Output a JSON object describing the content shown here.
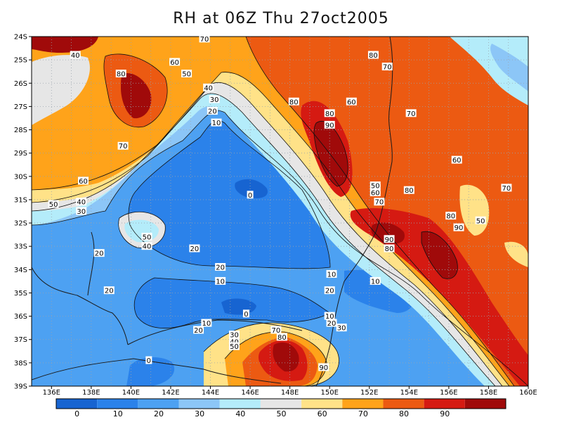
{
  "title": "RH at 06Z Thu 27oct2005",
  "map": {
    "lon_range": [
      135,
      160
    ],
    "lat_range": [
      -39,
      -24
    ],
    "lat_labels": [
      "24S",
      "25S",
      "26S",
      "27S",
      "28S",
      "29S",
      "30S",
      "31S",
      "32S",
      "33S",
      "34S",
      "35S",
      "36S",
      "37S",
      "38S",
      "39S"
    ],
    "lon_labels": [
      "136E",
      "138E",
      "140E",
      "142E",
      "144E",
      "146E",
      "148E",
      "150E",
      "152E",
      "154E",
      "156E",
      "158E",
      "160E"
    ],
    "contour_labels": [
      {
        "text": "70",
        "lon": 143.7,
        "lat": -24.1
      },
      {
        "text": "40",
        "lon": 137.2,
        "lat": -24.8
      },
      {
        "text": "80",
        "lon": 139.5,
        "lat": -25.6
      },
      {
        "text": "60",
        "lon": 142.2,
        "lat": -25.1
      },
      {
        "text": "50",
        "lon": 142.8,
        "lat": -25.6
      },
      {
        "text": "40",
        "lon": 143.9,
        "lat": -26.2
      },
      {
        "text": "30",
        "lon": 144.2,
        "lat": -26.7
      },
      {
        "text": "20",
        "lon": 144.1,
        "lat": -27.2
      },
      {
        "text": "10",
        "lon": 144.3,
        "lat": -27.7
      },
      {
        "text": "70",
        "lon": 139.6,
        "lat": -28.7
      },
      {
        "text": "60",
        "lon": 137.6,
        "lat": -30.2
      },
      {
        "text": "40",
        "lon": 137.5,
        "lat": -31.1
      },
      {
        "text": "30",
        "lon": 137.5,
        "lat": -31.5
      },
      {
        "text": "50",
        "lon": 136.1,
        "lat": -31.2
      },
      {
        "text": "50",
        "lon": 140.8,
        "lat": -32.6
      },
      {
        "text": "40",
        "lon": 140.8,
        "lat": -33.0
      },
      {
        "text": "20",
        "lon": 138.4,
        "lat": -33.3
      },
      {
        "text": "20",
        "lon": 143.2,
        "lat": -33.1
      },
      {
        "text": "0",
        "lon": 146.0,
        "lat": -30.8
      },
      {
        "text": "80",
        "lon": 152.2,
        "lat": -24.8
      },
      {
        "text": "70",
        "lon": 152.9,
        "lat": -25.3
      },
      {
        "text": "80",
        "lon": 148.2,
        "lat": -26.8
      },
      {
        "text": "80",
        "lon": 150.0,
        "lat": -27.3
      },
      {
        "text": "60",
        "lon": 151.1,
        "lat": -26.8
      },
      {
        "text": "90",
        "lon": 150.0,
        "lat": -27.8
      },
      {
        "text": "70",
        "lon": 154.1,
        "lat": -27.3
      },
      {
        "text": "60",
        "lon": 156.4,
        "lat": -29.3
      },
      {
        "text": "50",
        "lon": 152.3,
        "lat": -30.4
      },
      {
        "text": "60",
        "lon": 152.3,
        "lat": -30.7
      },
      {
        "text": "80",
        "lon": 154.0,
        "lat": -30.6
      },
      {
        "text": "70",
        "lon": 158.9,
        "lat": -30.5
      },
      {
        "text": "70",
        "lon": 152.5,
        "lat": -31.1
      },
      {
        "text": "80",
        "lon": 156.1,
        "lat": -31.7
      },
      {
        "text": "90",
        "lon": 156.5,
        "lat": -32.2
      },
      {
        "text": "50",
        "lon": 157.6,
        "lat": -31.9
      },
      {
        "text": "90",
        "lon": 153.0,
        "lat": -32.7
      },
      {
        "text": "80",
        "lon": 153.0,
        "lat": -33.1
      },
      {
        "text": "20",
        "lon": 144.5,
        "lat": -33.9
      },
      {
        "text": "10",
        "lon": 144.5,
        "lat": -34.5
      },
      {
        "text": "10",
        "lon": 150.1,
        "lat": -34.2
      },
      {
        "text": "10",
        "lon": 152.3,
        "lat": -34.5
      },
      {
        "text": "20",
        "lon": 150.0,
        "lat": -34.9
      },
      {
        "text": "20",
        "lon": 138.9,
        "lat": -34.9
      },
      {
        "text": "0",
        "lon": 145.8,
        "lat": -35.9
      },
      {
        "text": "10",
        "lon": 150.0,
        "lat": -36.0
      },
      {
        "text": "20",
        "lon": 150.1,
        "lat": -36.3
      },
      {
        "text": "30",
        "lon": 150.6,
        "lat": -36.5
      },
      {
        "text": "10",
        "lon": 143.8,
        "lat": -36.3
      },
      {
        "text": "20",
        "lon": 143.4,
        "lat": -36.6
      },
      {
        "text": "30",
        "lon": 145.2,
        "lat": -36.8
      },
      {
        "text": "40",
        "lon": 145.2,
        "lat": -37.1
      },
      {
        "text": "50",
        "lon": 145.2,
        "lat": -37.3
      },
      {
        "text": "70",
        "lon": 147.3,
        "lat": -36.6
      },
      {
        "text": "80",
        "lon": 147.6,
        "lat": -36.9
      },
      {
        "text": "90",
        "lon": 149.7,
        "lat": -38.2
      },
      {
        "text": "0",
        "lon": 140.9,
        "lat": -37.9
      }
    ]
  },
  "colorbar": {
    "colors": [
      "#1764d1",
      "#2b82ea",
      "#4da1f2",
      "#8cc6f7",
      "#b4ecfa",
      "#e6e6e6",
      "#ffe288",
      "#ffa31a",
      "#ec5a12",
      "#d51a12",
      "#a00a0a"
    ],
    "tick_labels": [
      "0",
      "10",
      "20",
      "30",
      "40",
      "50",
      "60",
      "70",
      "80",
      "90"
    ]
  }
}
